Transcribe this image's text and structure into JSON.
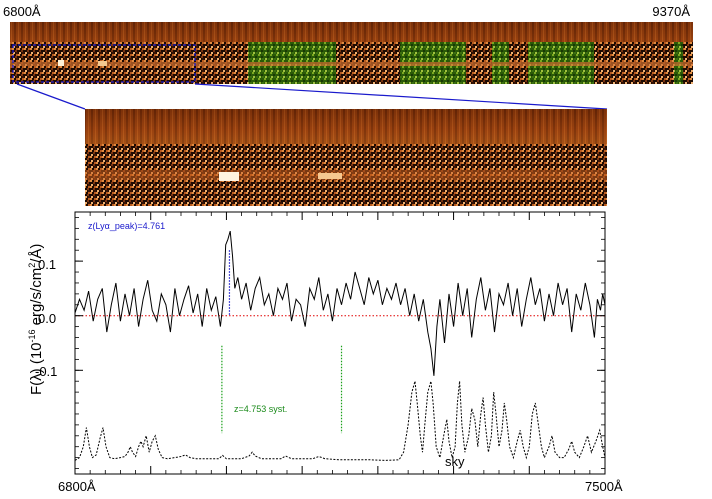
{
  "top_strip": {
    "left_label": "6800Å",
    "right_label": "9370Å"
  },
  "chart_data": {
    "type": "line",
    "title": "",
    "xlabel": "",
    "ylabel": "F(λ) (10⁻¹⁶ erg/s/cm²/Å)",
    "xlim": [
      6800,
      7500
    ],
    "ylim": [
      -0.29,
      0.19
    ],
    "x_tick_labels": [
      "6800Å",
      "7500Å"
    ],
    "y_ticks": [
      0.1,
      0.0,
      -0.1
    ],
    "y_tick_labels": [
      "0.1",
      "0.0",
      "-0.1"
    ],
    "grid": false,
    "annotations": {
      "lya_peak": "z(Lyα_peak)=4.761",
      "systemic": "z=4.753 syst.",
      "sky": "sky"
    },
    "colors": {
      "spectrum": "#000000",
      "zero_line": "#e00000",
      "lya_marker": "#1a1acc",
      "syst_marker": "#1aa01a",
      "sky": "#000000"
    },
    "markers": {
      "lya_peak_x": 7004,
      "systemic_x": [
        6994,
        7152
      ]
    },
    "series": [
      {
        "values": [
          [
            6800,
            0.005
          ],
          [
            6806,
            0.03
          ],
          [
            6812,
            0.01
          ],
          [
            6818,
            0.045
          ],
          [
            6824,
            -0.01
          ],
          [
            6830,
            0.03
          ],
          [
            6836,
            0.05
          ],
          [
            6842,
            -0.03
          ],
          [
            6848,
            0.02
          ],
          [
            6854,
            0.06
          ],
          [
            6860,
            -0.01
          ],
          [
            6866,
            0.04
          ],
          [
            6872,
            0.0
          ],
          [
            6878,
            0.05
          ],
          [
            6884,
            -0.02
          ],
          [
            6890,
            0.03
          ],
          [
            6896,
            0.065
          ],
          [
            6902,
            0.01
          ],
          [
            6908,
            -0.01
          ],
          [
            6914,
            0.04
          ],
          [
            6920,
            0.02
          ],
          [
            6926,
            -0.03
          ],
          [
            6932,
            0.05
          ],
          [
            6938,
            0.0
          ],
          [
            6944,
            0.03
          ],
          [
            6950,
            0.055
          ],
          [
            6956,
            0.005
          ],
          [
            6962,
            0.04
          ],
          [
            6968,
            -0.02
          ],
          [
            6974,
            0.05
          ],
          [
            6980,
            0.01
          ],
          [
            6986,
            0.035
          ],
          [
            6992,
            -0.02
          ],
          [
            6996,
            0.03
          ],
          [
            6999,
            0.13
          ],
          [
            7002,
            0.14
          ],
          [
            7005,
            0.155
          ],
          [
            7008,
            0.11
          ],
          [
            7011,
            0.05
          ],
          [
            7015,
            0.07
          ],
          [
            7020,
            0.03
          ],
          [
            7026,
            0.06
          ],
          [
            7032,
            0.01
          ],
          [
            7038,
            0.05
          ],
          [
            7044,
            0.07
          ],
          [
            7050,
            0.02
          ],
          [
            7056,
            0.04
          ],
          [
            7062,
            0.0
          ],
          [
            7068,
            0.05
          ],
          [
            7074,
            0.03
          ],
          [
            7080,
            0.06
          ],
          [
            7086,
            -0.01
          ],
          [
            7092,
            0.03
          ],
          [
            7098,
            0.02
          ],
          [
            7104,
            -0.02
          ],
          [
            7110,
            0.05
          ],
          [
            7116,
            0.03
          ],
          [
            7122,
            0.07
          ],
          [
            7128,
            0.01
          ],
          [
            7134,
            0.04
          ],
          [
            7140,
            -0.01
          ],
          [
            7146,
            0.05
          ],
          [
            7152,
            0.02
          ],
          [
            7158,
            0.06
          ],
          [
            7164,
            0.03
          ],
          [
            7170,
            0.08
          ],
          [
            7176,
            0.05
          ],
          [
            7182,
            0.02
          ],
          [
            7188,
            0.07
          ],
          [
            7194,
            0.04
          ],
          [
            7200,
            0.065
          ],
          [
            7206,
            0.02
          ],
          [
            7212,
            0.05
          ],
          [
            7218,
            0.03
          ],
          [
            7224,
            0.06
          ],
          [
            7230,
            0.02
          ],
          [
            7236,
            0.05
          ],
          [
            7242,
            0.0
          ],
          [
            7248,
            0.04
          ],
          [
            7254,
            -0.01
          ],
          [
            7260,
            0.03
          ],
          [
            7266,
            -0.03
          ],
          [
            7270,
            -0.06
          ],
          [
            7274,
            -0.11
          ],
          [
            7278,
            -0.02
          ],
          [
            7282,
            0.03
          ],
          [
            7288,
            -0.05
          ],
          [
            7294,
            0.04
          ],
          [
            7300,
            -0.02
          ],
          [
            7306,
            0.06
          ],
          [
            7312,
            0.0
          ],
          [
            7318,
            0.05
          ],
          [
            7324,
            -0.04
          ],
          [
            7330,
            0.03
          ],
          [
            7336,
            0.07
          ],
          [
            7342,
            0.01
          ],
          [
            7348,
            0.05
          ],
          [
            7354,
            -0.03
          ],
          [
            7360,
            0.04
          ],
          [
            7366,
            0.02
          ],
          [
            7372,
            0.06
          ],
          [
            7378,
            0.0
          ],
          [
            7384,
            0.05
          ],
          [
            7390,
            -0.02
          ],
          [
            7396,
            0.03
          ],
          [
            7402,
            0.07
          ],
          [
            7408,
            0.02
          ],
          [
            7414,
            0.05
          ],
          [
            7420,
            -0.01
          ],
          [
            7426,
            0.04
          ],
          [
            7432,
            0.0
          ],
          [
            7438,
            0.06
          ],
          [
            7444,
            0.02
          ],
          [
            7450,
            0.05
          ],
          [
            7456,
            -0.03
          ],
          [
            7462,
            0.04
          ],
          [
            7468,
            0.01
          ],
          [
            7474,
            0.06
          ],
          [
            7480,
            0.02
          ],
          [
            7486,
            -0.04
          ],
          [
            7490,
            0.03
          ],
          [
            7494,
            0.01
          ],
          [
            7497,
            0.04
          ],
          [
            7500,
            0.02
          ]
        ]
      },
      {
        "name": "sky",
        "values": [
          [
            6800,
            -0.265
          ],
          [
            6806,
            -0.26
          ],
          [
            6811,
            -0.24
          ],
          [
            6815,
            -0.205
          ],
          [
            6819,
            -0.24
          ],
          [
            6823,
            -0.26
          ],
          [
            6828,
            -0.255
          ],
          [
            6833,
            -0.225
          ],
          [
            6837,
            -0.205
          ],
          [
            6841,
            -0.24
          ],
          [
            6846,
            -0.26
          ],
          [
            6852,
            -0.262
          ],
          [
            6860,
            -0.26
          ],
          [
            6866,
            -0.258
          ],
          [
            6870,
            -0.25
          ],
          [
            6873,
            -0.24
          ],
          [
            6876,
            -0.25
          ],
          [
            6880,
            -0.258
          ],
          [
            6884,
            -0.24
          ],
          [
            6887,
            -0.23
          ],
          [
            6890,
            -0.24
          ],
          [
            6894,
            -0.22
          ],
          [
            6898,
            -0.25
          ],
          [
            6902,
            -0.23
          ],
          [
            6906,
            -0.22
          ],
          [
            6910,
            -0.245
          ],
          [
            6915,
            -0.26
          ],
          [
            6922,
            -0.262
          ],
          [
            6932,
            -0.26
          ],
          [
            6940,
            -0.258
          ],
          [
            6946,
            -0.255
          ],
          [
            6952,
            -0.26
          ],
          [
            6960,
            -0.262
          ],
          [
            6970,
            -0.262
          ],
          [
            6980,
            -0.262
          ],
          [
            6990,
            -0.262
          ],
          [
            6995,
            -0.256
          ],
          [
            7000,
            -0.262
          ],
          [
            7010,
            -0.262
          ],
          [
            7020,
            -0.262
          ],
          [
            7030,
            -0.257
          ],
          [
            7034,
            -0.25
          ],
          [
            7038,
            -0.257
          ],
          [
            7046,
            -0.262
          ],
          [
            7060,
            -0.262
          ],
          [
            7072,
            -0.262
          ],
          [
            7078,
            -0.257
          ],
          [
            7086,
            -0.262
          ],
          [
            7100,
            -0.262
          ],
          [
            7114,
            -0.262
          ],
          [
            7122,
            -0.258
          ],
          [
            7130,
            -0.262
          ],
          [
            7150,
            -0.264
          ],
          [
            7170,
            -0.264
          ],
          [
            7190,
            -0.264
          ],
          [
            7210,
            -0.265
          ],
          [
            7228,
            -0.264
          ],
          [
            7234,
            -0.25
          ],
          [
            7240,
            -0.2
          ],
          [
            7245,
            -0.14
          ],
          [
            7249,
            -0.12
          ],
          [
            7252,
            -0.16
          ],
          [
            7256,
            -0.22
          ],
          [
            7259,
            -0.25
          ],
          [
            7262,
            -0.2
          ],
          [
            7266,
            -0.14
          ],
          [
            7270,
            -0.12
          ],
          [
            7273,
            -0.16
          ],
          [
            7277,
            -0.24
          ],
          [
            7282,
            -0.26
          ],
          [
            7287,
            -0.22
          ],
          [
            7291,
            -0.19
          ],
          [
            7294,
            -0.23
          ],
          [
            7298,
            -0.26
          ],
          [
            7302,
            -0.24
          ],
          [
            7305,
            -0.16
          ],
          [
            7308,
            -0.12
          ],
          [
            7311,
            -0.2
          ],
          [
            7315,
            -0.25
          ],
          [
            7320,
            -0.22
          ],
          [
            7324,
            -0.17
          ],
          [
            7328,
            -0.19
          ],
          [
            7332,
            -0.24
          ],
          [
            7336,
            -0.18
          ],
          [
            7339,
            -0.15
          ],
          [
            7342,
            -0.2
          ],
          [
            7346,
            -0.25
          ],
          [
            7350,
            -0.22
          ],
          [
            7353,
            -0.14
          ],
          [
            7356,
            -0.18
          ],
          [
            7360,
            -0.24
          ],
          [
            7364,
            -0.21
          ],
          [
            7367,
            -0.16
          ],
          [
            7370,
            -0.19
          ],
          [
            7374,
            -0.24
          ],
          [
            7379,
            -0.26
          ],
          [
            7384,
            -0.23
          ],
          [
            7388,
            -0.21
          ],
          [
            7392,
            -0.24
          ],
          [
            7396,
            -0.26
          ],
          [
            7400,
            -0.24
          ],
          [
            7404,
            -0.18
          ],
          [
            7408,
            -0.16
          ],
          [
            7412,
            -0.2
          ],
          [
            7416,
            -0.24
          ],
          [
            7420,
            -0.26
          ],
          [
            7426,
            -0.24
          ],
          [
            7430,
            -0.22
          ],
          [
            7434,
            -0.25
          ],
          [
            7440,
            -0.26
          ],
          [
            7446,
            -0.26
          ],
          [
            7452,
            -0.245
          ],
          [
            7456,
            -0.23
          ],
          [
            7460,
            -0.25
          ],
          [
            7466,
            -0.26
          ],
          [
            7472,
            -0.24
          ],
          [
            7477,
            -0.22
          ],
          [
            7482,
            -0.25
          ],
          [
            7488,
            -0.23
          ],
          [
            7493,
            -0.21
          ],
          [
            7497,
            -0.24
          ],
          [
            7500,
            -0.26
          ]
        ]
      }
    ]
  }
}
